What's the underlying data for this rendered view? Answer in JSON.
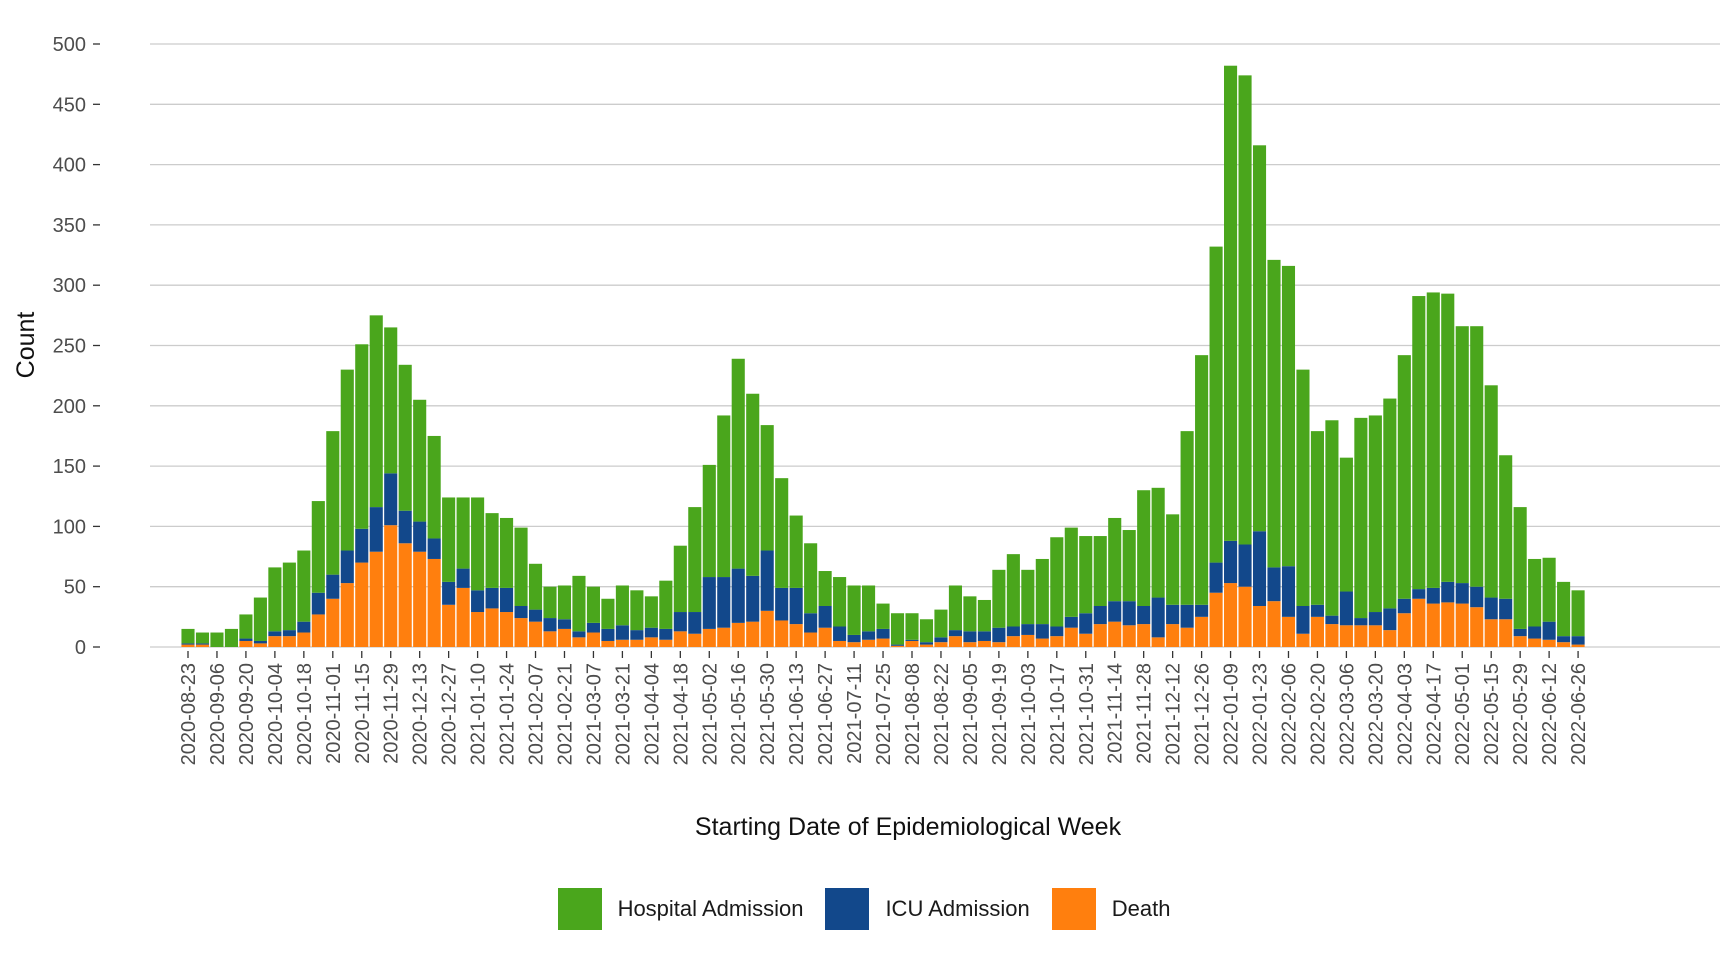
{
  "chart_data": {
    "type": "bar",
    "stacked": true,
    "title": "",
    "xlabel": "Starting Date of Epidemiological Week",
    "ylabel": "Count",
    "ylim": [
      0,
      500
    ],
    "yticks": [
      0,
      50,
      100,
      150,
      200,
      250,
      300,
      350,
      400,
      450,
      500
    ],
    "grid": "horizontal major gridlines",
    "legend_position": "bottom",
    "categories": [
      "2020-08-23",
      "2020-08-30",
      "2020-09-06",
      "2020-09-13",
      "2020-09-20",
      "2020-09-27",
      "2020-10-04",
      "2020-10-11",
      "2020-10-18",
      "2020-10-25",
      "2020-11-01",
      "2020-11-08",
      "2020-11-15",
      "2020-11-22",
      "2020-11-29",
      "2020-12-06",
      "2020-12-13",
      "2020-12-20",
      "2020-12-27",
      "2021-01-03",
      "2021-01-10",
      "2021-01-17",
      "2021-01-24",
      "2021-01-31",
      "2021-02-07",
      "2021-02-14",
      "2021-02-21",
      "2021-02-28",
      "2021-03-07",
      "2021-03-14",
      "2021-03-21",
      "2021-03-28",
      "2021-04-04",
      "2021-04-11",
      "2021-04-18",
      "2021-04-25",
      "2021-05-02",
      "2021-05-09",
      "2021-05-16",
      "2021-05-23",
      "2021-05-30",
      "2021-06-06",
      "2021-06-13",
      "2021-06-20",
      "2021-06-27",
      "2021-07-04",
      "2021-07-11",
      "2021-07-18",
      "2021-07-25",
      "2021-08-01",
      "2021-08-08",
      "2021-08-15",
      "2021-08-22",
      "2021-08-29",
      "2021-09-05",
      "2021-09-12",
      "2021-09-19",
      "2021-09-26",
      "2021-10-03",
      "2021-10-10",
      "2021-10-17",
      "2021-10-24",
      "2021-10-31",
      "2021-11-07",
      "2021-11-14",
      "2021-11-21",
      "2021-11-28",
      "2021-12-05",
      "2021-12-12",
      "2021-12-19",
      "2021-12-26",
      "2022-01-02",
      "2022-01-09",
      "2022-01-16",
      "2022-01-23",
      "2022-01-30",
      "2022-02-06",
      "2022-02-13",
      "2022-02-20",
      "2022-02-27",
      "2022-03-06",
      "2022-03-13",
      "2022-03-20",
      "2022-03-27",
      "2022-04-03",
      "2022-04-10",
      "2022-04-17",
      "2022-04-24",
      "2022-05-01",
      "2022-05-08",
      "2022-05-15",
      "2022-05-22",
      "2022-05-29",
      "2022-06-05",
      "2022-06-12",
      "2022-06-19",
      "2022-06-26"
    ],
    "tick_labels": [
      "2020-08-23",
      "2020-09-06",
      "2020-09-20",
      "2020-10-04",
      "2020-10-18",
      "2020-11-01",
      "2020-11-15",
      "2020-11-29",
      "2020-12-13",
      "2020-12-27",
      "2021-01-10",
      "2021-01-24",
      "2021-02-07",
      "2021-02-21",
      "2021-03-07",
      "2021-03-21",
      "2021-04-04",
      "2021-04-18",
      "2021-05-02",
      "2021-05-16",
      "2021-05-30",
      "2021-06-13",
      "2021-06-27",
      "2021-07-11",
      "2021-07-25",
      "2021-08-08",
      "2021-08-22",
      "2021-09-05",
      "2021-09-19",
      "2021-10-03",
      "2021-10-17",
      "2021-10-31",
      "2021-11-14",
      "2021-11-28",
      "2021-12-12",
      "2021-12-26",
      "2022-01-09",
      "2022-01-23",
      "2022-02-06",
      "2022-02-20",
      "2022-03-06",
      "2022-03-20",
      "2022-04-03",
      "2022-04-17",
      "2022-05-01",
      "2022-05-15",
      "2022-05-29",
      "2022-06-12",
      "2022-06-26"
    ],
    "series": [
      {
        "name": "Death",
        "color": "#FF7F0E",
        "values": [
          2,
          2,
          0,
          0,
          5,
          3,
          9,
          9,
          12,
          27,
          40,
          53,
          70,
          79,
          101,
          86,
          79,
          73,
          35,
          49,
          29,
          32,
          29,
          24,
          21,
          13,
          15,
          8,
          12,
          5,
          6,
          6,
          8,
          6,
          13,
          11,
          15,
          16,
          20,
          21,
          30,
          22,
          19,
          12,
          16,
          5,
          4,
          6,
          7,
          1,
          5,
          2,
          4,
          9,
          4,
          5,
          4,
          9,
          10,
          7,
          9,
          16,
          11,
          19,
          21,
          18,
          19,
          8,
          19,
          16,
          25,
          45,
          53,
          50,
          34,
          38,
          25,
          11,
          25,
          19,
          18,
          18,
          18,
          14,
          28,
          40,
          36,
          37,
          36,
          33,
          23,
          23,
          9,
          7,
          6,
          4,
          2
        ]
      },
      {
        "name": "ICU Admission",
        "color": "#12488B",
        "values": [
          1,
          1,
          0,
          0,
          2,
          2,
          4,
          5,
          9,
          18,
          20,
          27,
          28,
          37,
          43,
          27,
          25,
          17,
          19,
          16,
          18,
          17,
          20,
          10,
          10,
          11,
          8,
          5,
          8,
          10,
          12,
          8,
          8,
          9,
          16,
          18,
          43,
          42,
          45,
          38,
          50,
          27,
          30,
          16,
          18,
          12,
          6,
          7,
          8,
          1,
          1,
          2,
          4,
          5,
          9,
          8,
          12,
          8,
          9,
          12,
          8,
          9,
          17,
          15,
          17,
          20,
          15,
          33,
          16,
          19,
          10,
          25,
          35,
          35,
          62,
          28,
          42,
          23,
          10,
          7,
          28,
          6,
          11,
          18,
          12,
          8,
          13,
          17,
          17,
          17,
          18,
          17,
          6,
          10,
          15,
          5,
          7
        ]
      },
      {
        "name": "Hospital Admission",
        "color": "#4AA61C",
        "values": [
          12,
          9,
          12,
          15,
          20,
          36,
          53,
          56,
          59,
          76,
          119,
          150,
          153,
          159,
          121,
          121,
          101,
          85,
          70,
          59,
          77,
          62,
          58,
          65,
          38,
          26,
          28,
          46,
          30,
          25,
          33,
          33,
          26,
          40,
          55,
          87,
          93,
          134,
          174,
          151,
          104,
          91,
          60,
          58,
          29,
          41,
          41,
          38,
          21,
          26,
          22,
          19,
          23,
          37,
          29,
          26,
          48,
          60,
          45,
          54,
          74,
          74,
          64,
          58,
          69,
          59,
          96,
          91,
          75,
          144,
          207,
          262,
          394,
          389,
          320,
          255,
          249,
          196,
          144,
          162,
          111,
          166,
          163,
          174,
          202,
          243,
          245,
          239,
          213,
          216,
          176,
          119,
          101,
          56,
          53,
          45,
          38
        ]
      }
    ]
  }
}
